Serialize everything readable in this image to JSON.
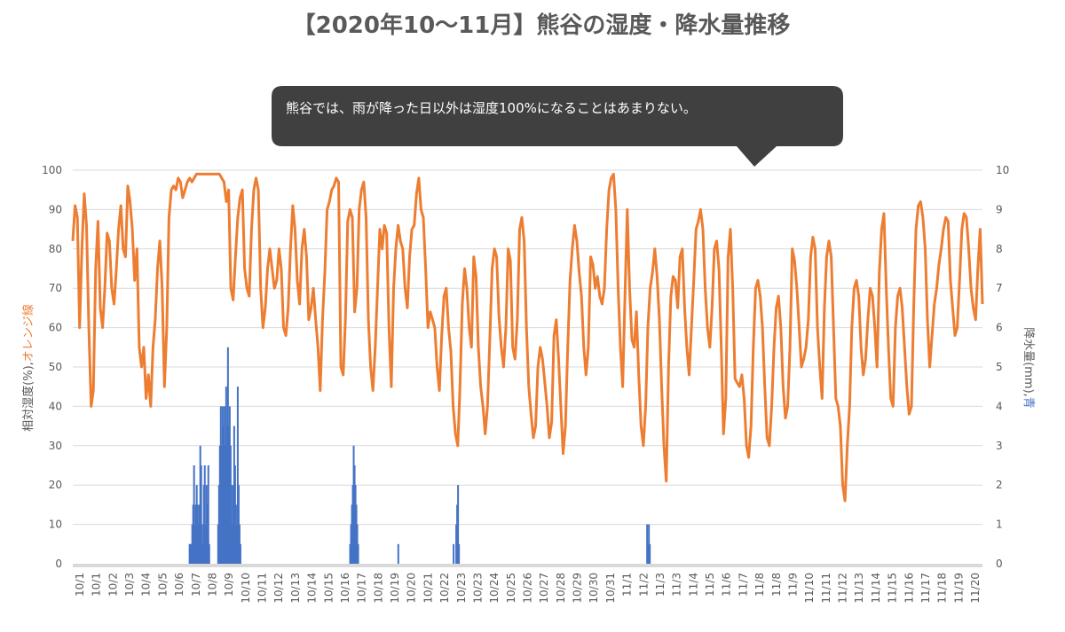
{
  "chart_data": {
    "type": "line+bar",
    "title": "【2020年10〜11月】熊谷の湿度・降水量推移",
    "annotation": "熊谷では、雨が降った日以外は湿度100%になることはあまりない。",
    "y_left": {
      "label_main": "相対湿度(%),",
      "label_color": "オレンジ線",
      "range": [
        0,
        100
      ],
      "ticks": [
        "0",
        "10",
        "20",
        "30",
        "40",
        "50",
        "60",
        "70",
        "80",
        "90",
        "100"
      ]
    },
    "y_right": {
      "label_main": "降水量(mm),",
      "label_color": "青",
      "range": [
        0,
        10
      ],
      "ticks": [
        "0",
        "1",
        "2",
        "3",
        "4",
        "5",
        "6",
        "7",
        "8",
        "9",
        "10"
      ]
    },
    "x_ticks": [
      "10/1",
      "10/1",
      "10/2",
      "10/3",
      "10/4",
      "10/5",
      "10/6",
      "10/7",
      "10/8",
      "10/9",
      "10/10",
      "10/11",
      "10/12",
      "10/13",
      "10/14",
      "10/15",
      "10/16",
      "10/17",
      "10/18",
      "10/19",
      "10/20",
      "10/21",
      "10/22",
      "10/23",
      "10/23",
      "10/24",
      "10/25",
      "10/26",
      "10/27",
      "10/28",
      "10/29",
      "10/30",
      "10/31",
      "11/1",
      "11/2",
      "11/3",
      "11/3",
      "11/4",
      "11/5",
      "11/6",
      "11/7",
      "11/8",
      "11/8",
      "11/9",
      "11/10",
      "11/11",
      "11/12",
      "11/13",
      "11/14",
      "11/15",
      "11/16",
      "11/17",
      "11/18",
      "11/19",
      "11/20"
    ],
    "grid": true,
    "series": [
      {
        "name": "相対湿度",
        "axis": "left",
        "color": "#ED7D31",
        "kind": "line",
        "day_values": [
          [
            82,
            91,
            88,
            60,
            80,
            94,
            86,
            60,
            40,
            44,
            75,
            87,
            65,
            60,
            70
          ],
          [
            84,
            82,
            70,
            66,
            75,
            85,
            91,
            80,
            78,
            96,
            92,
            85,
            72,
            80,
            55
          ],
          [
            50,
            55,
            42,
            48,
            40,
            55,
            62,
            75,
            82,
            70,
            45,
            60,
            88,
            95,
            96
          ],
          [
            95,
            98,
            97,
            93,
            95,
            97,
            98,
            97,
            98,
            99,
            99,
            99,
            99,
            99,
            99
          ],
          [
            99,
            99,
            99,
            99,
            99,
            98,
            97,
            92,
            95,
            70,
            67,
            78,
            88,
            93,
            95
          ],
          [
            75,
            70,
            68,
            85,
            95,
            98,
            95,
            70,
            60,
            65,
            75,
            80,
            75,
            70,
            72
          ],
          [
            80,
            75,
            60,
            58,
            65,
            80,
            91,
            85,
            72,
            66,
            80,
            85,
            78,
            62,
            65
          ],
          [
            70,
            62,
            55,
            44,
            62,
            74,
            90,
            92,
            95,
            96,
            98,
            97,
            50,
            48,
            62
          ],
          [
            87,
            90,
            88,
            64,
            70,
            90,
            95,
            97,
            88,
            62,
            50,
            44,
            55,
            70,
            85
          ],
          [
            80,
            86,
            84,
            60,
            45,
            70,
            80,
            86,
            82,
            80,
            70,
            65,
            78,
            85,
            86
          ],
          [
            94,
            98,
            90,
            88,
            75,
            60,
            64,
            62,
            60,
            50,
            44,
            58,
            68,
            70,
            60
          ],
          [
            54,
            40,
            33,
            30,
            45,
            66,
            75,
            70,
            60,
            55,
            78,
            73,
            55,
            45,
            40
          ],
          [
            33,
            40,
            57,
            75,
            80,
            78,
            63,
            55,
            50,
            60,
            80,
            77,
            55,
            52,
            62
          ],
          [
            85,
            88,
            82,
            60,
            45,
            38,
            32,
            35,
            50,
            55,
            52,
            46,
            40,
            32,
            36
          ],
          [
            58,
            62,
            52,
            40,
            28,
            35,
            55,
            72,
            80,
            86,
            82,
            74,
            68,
            55,
            48
          ],
          [
            55,
            78,
            76,
            70,
            73,
            68,
            66,
            70,
            85,
            95,
            98,
            99,
            90,
            70,
            55
          ],
          [
            45,
            68,
            90,
            70,
            57,
            55,
            64,
            48,
            35,
            30,
            40,
            60,
            70,
            74,
            80
          ],
          [
            73,
            62,
            45,
            30,
            21,
            50,
            68,
            73,
            72,
            65,
            78,
            80,
            65,
            55,
            48
          ],
          [
            60,
            72,
            85,
            87,
            90,
            85,
            70,
            60,
            55,
            65,
            80,
            82,
            75,
            55,
            33
          ],
          [
            42,
            78,
            85,
            70,
            47,
            46,
            45,
            48,
            42,
            30,
            27,
            35,
            55,
            70,
            72
          ],
          [
            68,
            60,
            45,
            32,
            30,
            40,
            55,
            65,
            68,
            60,
            45,
            37,
            40,
            55,
            80
          ],
          [
            77,
            70,
            60,
            50,
            52,
            55,
            62,
            78,
            83,
            80,
            60,
            50,
            42,
            65,
            78
          ],
          [
            82,
            78,
            60,
            42,
            40,
            35,
            20,
            16,
            30,
            40,
            60,
            70,
            72,
            68,
            55
          ],
          [
            48,
            52,
            62,
            70,
            68,
            60,
            50,
            74,
            85,
            89,
            70,
            55,
            42,
            40,
            60
          ],
          [
            68,
            70,
            65,
            55,
            45,
            38,
            40,
            65,
            85,
            91,
            92,
            88,
            80,
            62,
            50
          ],
          [
            58,
            66,
            70,
            76,
            80,
            85,
            88,
            87,
            72,
            65,
            58,
            60,
            72,
            85,
            89
          ],
          [
            88,
            80,
            70,
            65,
            62,
            75,
            85,
            66
          ]
        ]
      },
      {
        "name": "降水量",
        "axis": "right",
        "color": "#4472C4",
        "kind": "bar",
        "events": [
          [
            6.55,
            0.5
          ],
          [
            6.6,
            0.5
          ],
          [
            6.65,
            0.5
          ],
          [
            6.7,
            1
          ],
          [
            6.75,
            1.5
          ],
          [
            6.8,
            2.5
          ],
          [
            6.85,
            1
          ],
          [
            6.9,
            1.5
          ],
          [
            6.95,
            2
          ],
          [
            7.0,
            1.5
          ],
          [
            7.05,
            1
          ],
          [
            7.1,
            1.5
          ],
          [
            7.15,
            3
          ],
          [
            7.2,
            2.5
          ],
          [
            7.25,
            1
          ],
          [
            7.3,
            0.5
          ],
          [
            7.35,
            2
          ],
          [
            7.4,
            2.5
          ],
          [
            7.45,
            1
          ],
          [
            7.5,
            2
          ],
          [
            7.55,
            1.5
          ],
          [
            7.6,
            2.5
          ],
          [
            7.65,
            0.5
          ],
          [
            8.15,
            1
          ],
          [
            8.2,
            2
          ],
          [
            8.25,
            3
          ],
          [
            8.3,
            4
          ],
          [
            8.35,
            3
          ],
          [
            8.4,
            4
          ],
          [
            8.45,
            3.5
          ],
          [
            8.5,
            4
          ],
          [
            8.55,
            3
          ],
          [
            8.6,
            4.5
          ],
          [
            8.65,
            3.5
          ],
          [
            8.7,
            5.5
          ],
          [
            8.75,
            3.5
          ],
          [
            8.8,
            4
          ],
          [
            8.85,
            3
          ],
          [
            8.9,
            2
          ],
          [
            8.95,
            1
          ],
          [
            9.0,
            2
          ],
          [
            9.05,
            3.5
          ],
          [
            9.1,
            2.5
          ],
          [
            9.15,
            1.5
          ],
          [
            9.2,
            1
          ],
          [
            9.25,
            4.5
          ],
          [
            9.3,
            2
          ],
          [
            9.35,
            1
          ],
          [
            9.4,
            0.5
          ],
          [
            15.55,
            0.5
          ],
          [
            15.6,
            1
          ],
          [
            15.65,
            1.5
          ],
          [
            15.7,
            2
          ],
          [
            15.75,
            3
          ],
          [
            15.8,
            2.5
          ],
          [
            15.85,
            2
          ],
          [
            15.9,
            1.5
          ],
          [
            15.95,
            1
          ],
          [
            16.0,
            0.5
          ],
          [
            18.25,
            0.5
          ],
          [
            21.35,
            0.5
          ],
          [
            21.5,
            1
          ],
          [
            21.55,
            1.5
          ],
          [
            21.6,
            2
          ],
          [
            21.65,
            0.5
          ],
          [
            32.2,
            1
          ],
          [
            32.25,
            0.5
          ],
          [
            32.3,
            1
          ],
          [
            32.35,
            0.5
          ]
        ]
      }
    ]
  }
}
